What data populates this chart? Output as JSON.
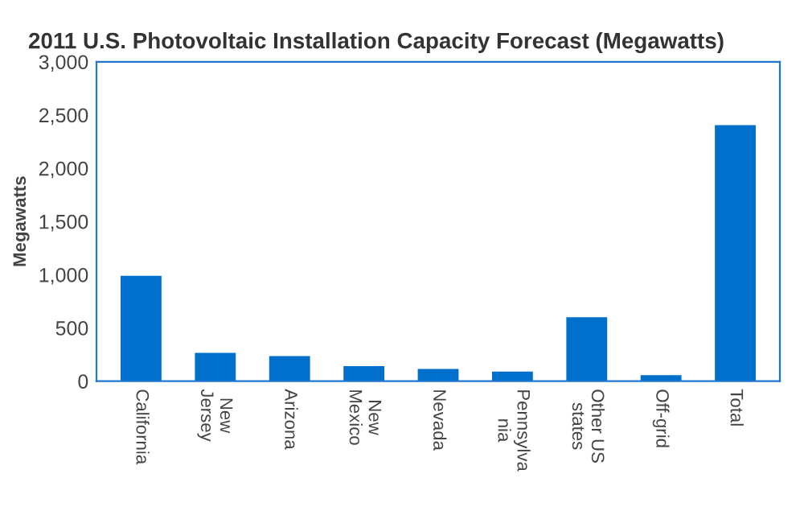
{
  "chart_data": {
    "type": "bar",
    "title": "2011 U.S. Photovoltaic Installation Capacity Forecast (Megawatts)",
    "ylabel": "Megawatts",
    "categories": [
      "California",
      "New\nJersey",
      "Arizona",
      "New\nMexico",
      "Nevada",
      "Pennsylva\nnia",
      "Other US\nstates",
      "Off-grid",
      "Total"
    ],
    "values": [
      990,
      265,
      235,
      140,
      115,
      90,
      600,
      55,
      2405
    ],
    "color": "#0070cc",
    "ylim": [
      0,
      3000
    ],
    "yticks": [
      {
        "value": 0,
        "label": "0"
      },
      {
        "value": 500,
        "label": "500"
      },
      {
        "value": 1000,
        "label": "1,000"
      },
      {
        "value": 1500,
        "label": "1,500"
      },
      {
        "value": 2000,
        "label": "2,000"
      },
      {
        "value": 2500,
        "label": "2,500"
      },
      {
        "value": 3000,
        "label": "3,000"
      }
    ],
    "grid": false
  }
}
